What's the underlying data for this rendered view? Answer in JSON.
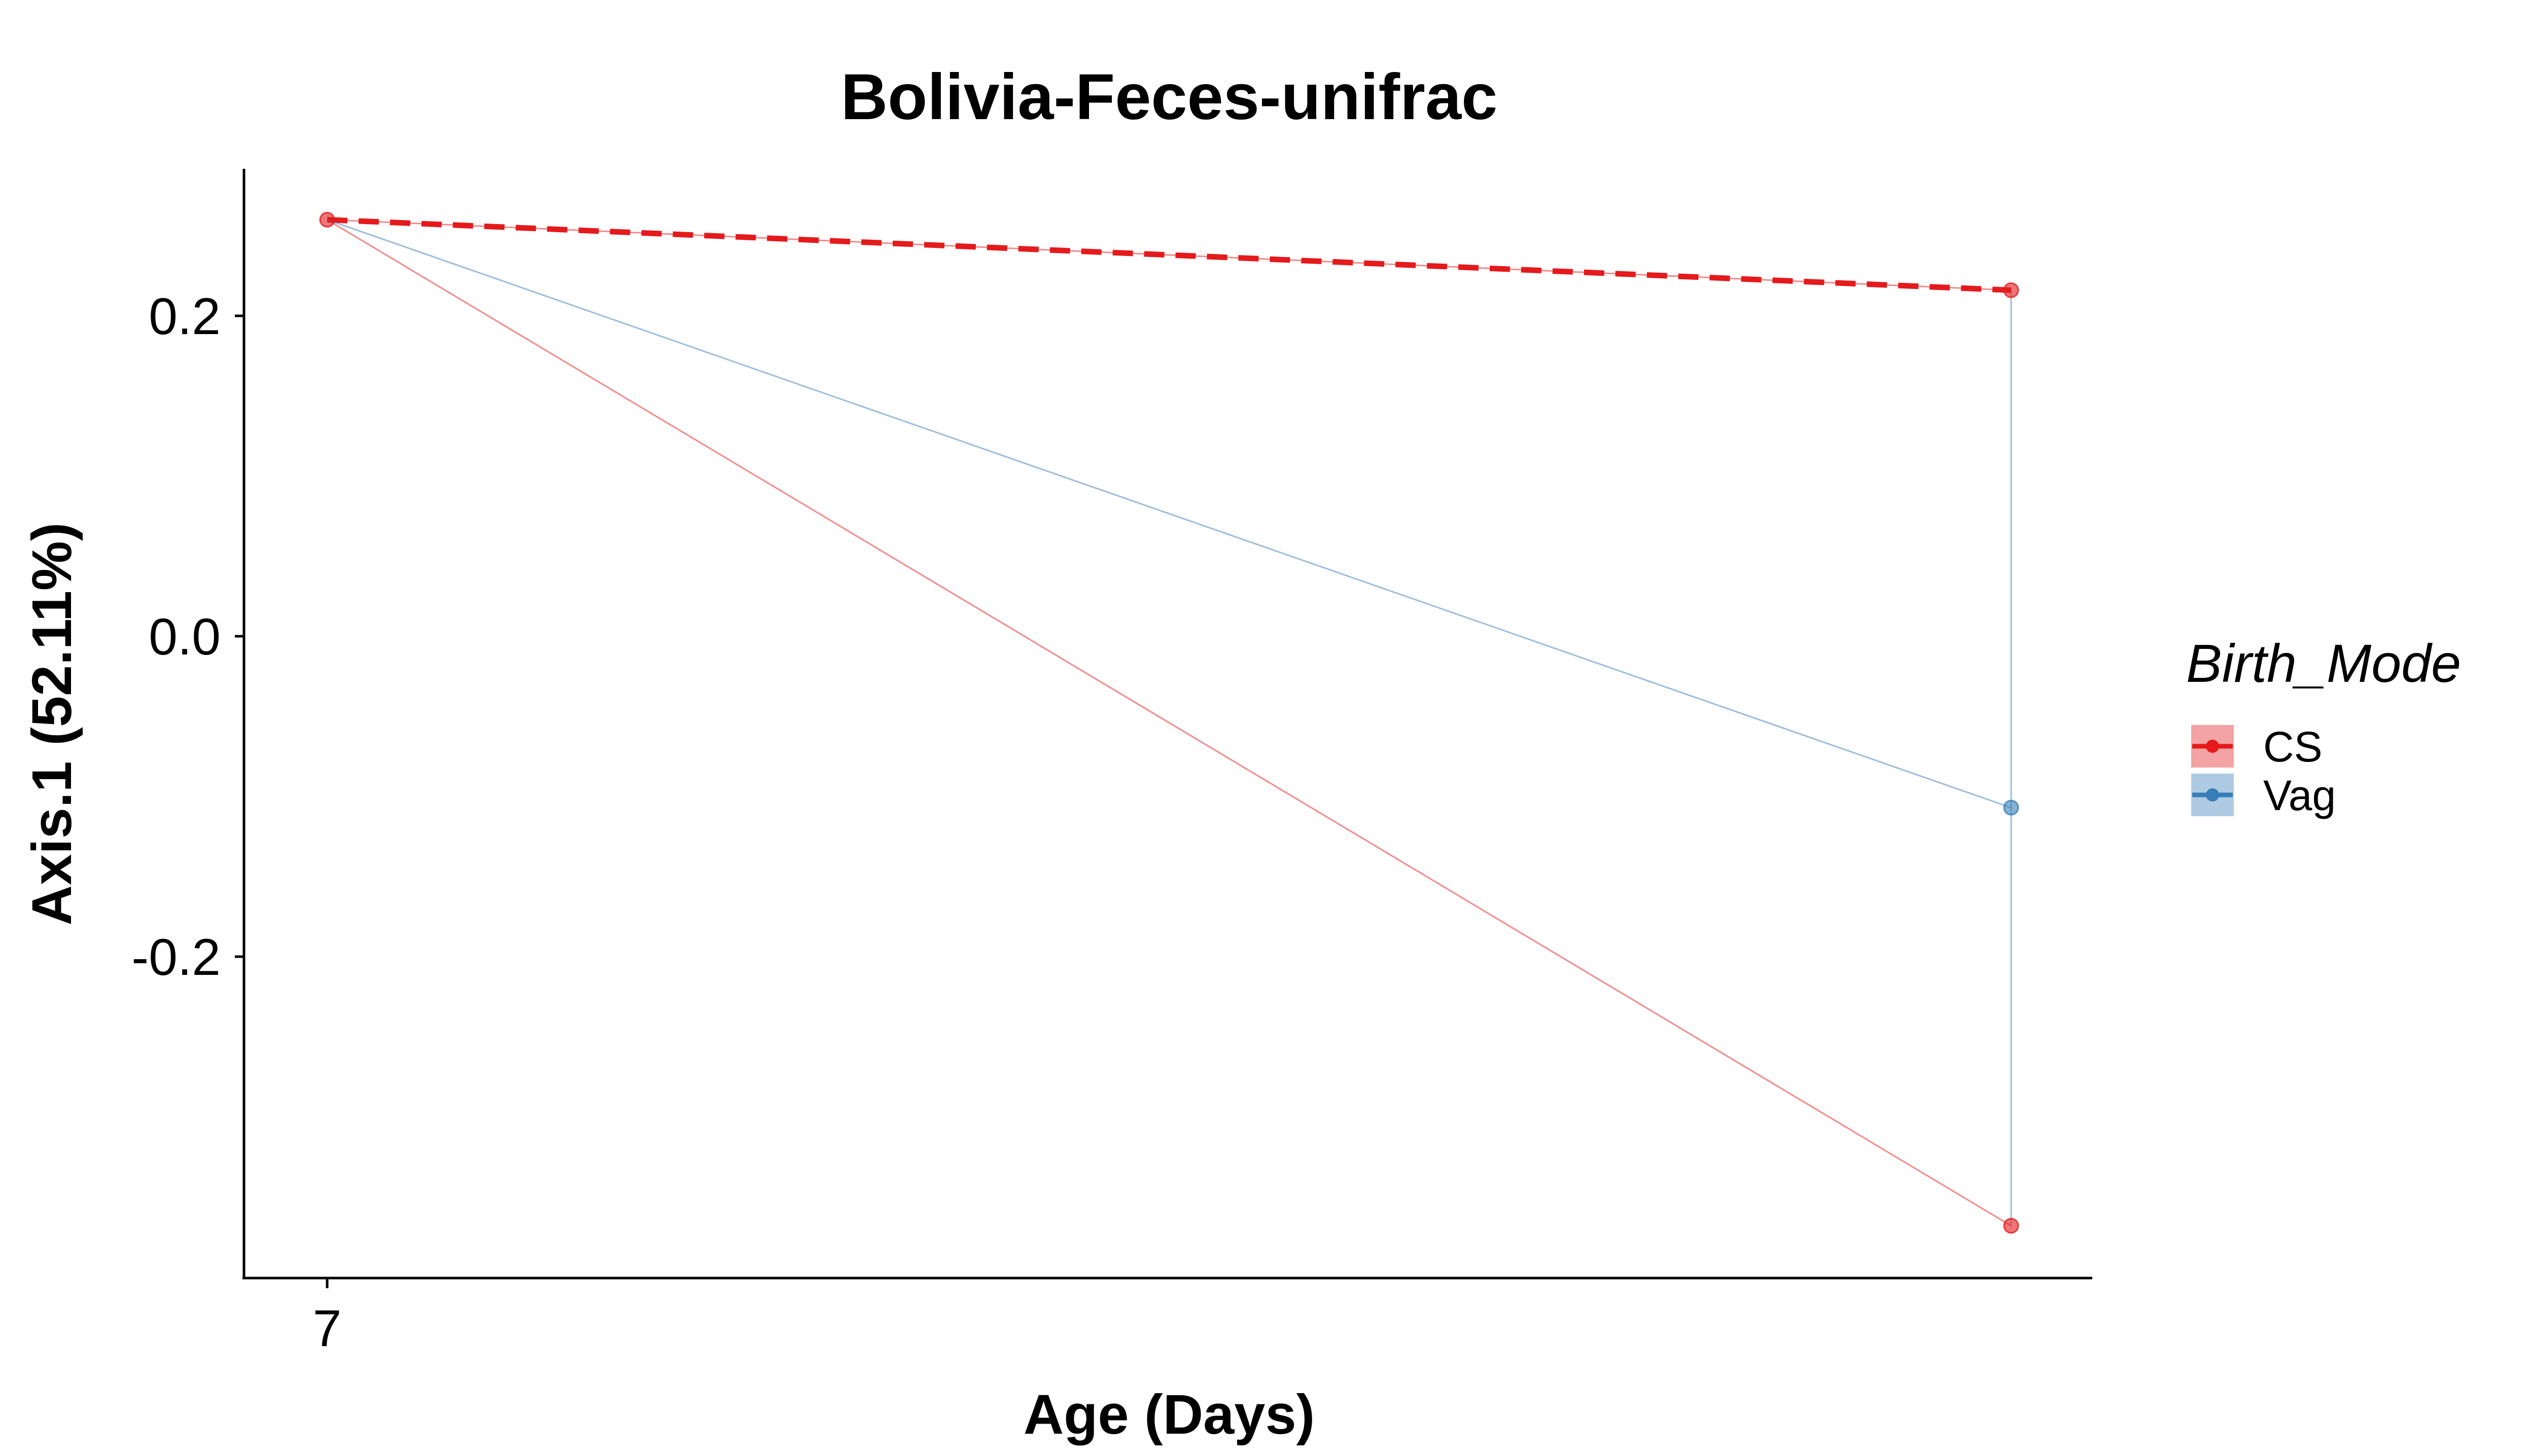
{
  "chart_data": {
    "type": "line",
    "title": "Bolivia-Feces-unifrac",
    "xlabel": "Age (Days)",
    "ylabel": "Axis.1 (52.11%)",
    "x_tick_labels": [
      "7"
    ],
    "y_tick_labels": [
      "0.2",
      "0.0",
      "-0.2"
    ],
    "y_ticks": [
      0.2,
      0.0,
      -0.2
    ],
    "ylim": [
      -0.4,
      0.29
    ],
    "grid": false,
    "legend": {
      "title": "Birth_Mode",
      "placement": "right",
      "entries": [
        "CS",
        "Vag"
      ]
    },
    "series": [
      {
        "name": "CS",
        "color": "#E41A1C",
        "trend": {
          "style": "dashed",
          "points": [
            {
              "x": 7,
              "y": 0.26
            },
            {
              "x": 28,
              "y": 0.216
            }
          ]
        },
        "subjects": [
          [
            {
              "x": 7,
              "y": 0.26
            },
            {
              "x": 28,
              "y": 0.216
            }
          ],
          [
            {
              "x": 7,
              "y": 0.26
            },
            {
              "x": 28,
              "y": -0.368
            }
          ]
        ]
      },
      {
        "name": "Vag",
        "color": "#377EB8",
        "trend": null,
        "subjects": [
          [
            {
              "x": 7,
              "y": 0.26
            },
            {
              "x": 28,
              "y": -0.107
            }
          ],
          [
            {
              "x": 28,
              "y": 0.216
            },
            {
              "x": 28,
              "y": -0.368
            }
          ]
        ]
      }
    ]
  }
}
